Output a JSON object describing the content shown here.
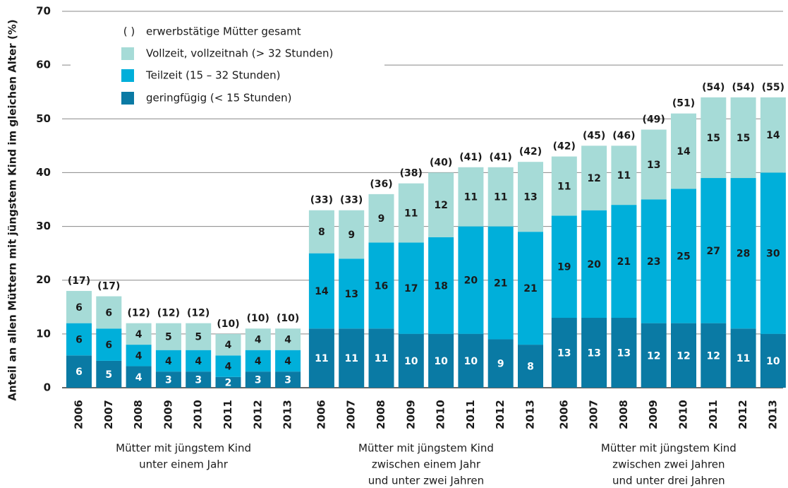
{
  "chart_data": {
    "type": "stacked-bar",
    "y_label": "Anteil an allen Müttern mit jüngstem Kind im gleichen Alter (%)",
    "ylim": [
      0,
      70
    ],
    "yticks": [
      0,
      10,
      20,
      30,
      40,
      50,
      60,
      70
    ],
    "grid": true,
    "groups": [
      {
        "label": [
          "Mütter mit jüngstem Kind",
          "unter einem Jahr"
        ],
        "categories": [
          "2006",
          "2007",
          "2008",
          "2009",
          "2010",
          "2011",
          "2012",
          "2013"
        ]
      },
      {
        "label": [
          "Mütter mit jüngstem Kind",
          "zwischen einem Jahr",
          "und unter zwei Jahren"
        ],
        "categories": [
          "2006",
          "2007",
          "2008",
          "2009",
          "2010",
          "2011",
          "2012",
          "2013"
        ]
      },
      {
        "label": [
          "Mütter mit jüngstem Kind",
          "zwischen zwei Jahren",
          "und unter drei Jahren"
        ],
        "categories": [
          "2006",
          "2007",
          "2008",
          "2009",
          "2010",
          "2011",
          "2012",
          "2013"
        ]
      }
    ],
    "series": [
      {
        "name": "geringfügig (< 15 Stunden)",
        "color": "#0a7aa4",
        "label_color": "#ffffff",
        "values": [
          6,
          5,
          4,
          3,
          3,
          2,
          3,
          3,
          11,
          11,
          11,
          10,
          10,
          10,
          9,
          8,
          13,
          13,
          13,
          12,
          12,
          12,
          11,
          10
        ]
      },
      {
        "name": "Teilzeit (15 – 32 Stunden)",
        "color": "#00afda",
        "label_color": "#1a1a1a",
        "values": [
          6,
          6,
          4,
          4,
          4,
          4,
          4,
          4,
          14,
          13,
          16,
          17,
          18,
          20,
          21,
          21,
          19,
          20,
          21,
          23,
          25,
          27,
          28,
          30
        ]
      },
      {
        "name": "Vollzeit, vollzeitnah (> 32 Stunden)",
        "color": "#a6dbd7",
        "label_color": "#1a1a1a",
        "values": [
          6,
          6,
          4,
          5,
          5,
          4,
          4,
          4,
          8,
          9,
          9,
          11,
          12,
          11,
          11,
          13,
          11,
          12,
          11,
          13,
          14,
          15,
          15,
          14
        ]
      }
    ],
    "totals": {
      "name": "erwerbstätige Mütter gesamt",
      "symbol": "( )",
      "values": [
        17,
        17,
        12,
        12,
        12,
        10,
        10,
        10,
        33,
        33,
        36,
        38,
        40,
        41,
        41,
        42,
        42,
        45,
        46,
        49,
        51,
        54,
        54,
        55
      ],
      "value_labels": [
        "(17)",
        "(17)",
        "(12)",
        "(12)",
        "(12)",
        "(10)",
        "(10)",
        "(10)",
        "(33)",
        "(33)",
        "(36)",
        "(38)",
        "(40)",
        "(41)",
        "(41)",
        "(42)",
        "(42)",
        "(45)",
        "(46)",
        "(49)",
        "(51)",
        "(54)",
        "(54)",
        "(55)"
      ]
    }
  }
}
